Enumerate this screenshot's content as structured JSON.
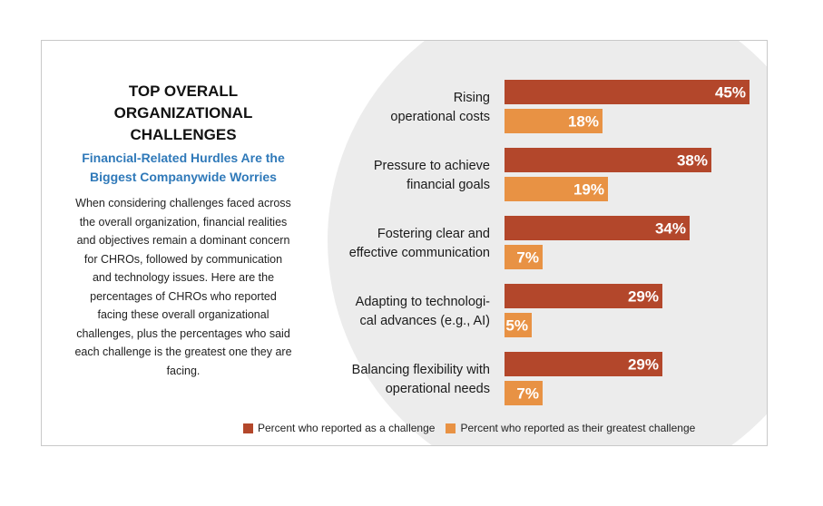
{
  "panel": {
    "title": "TOP OVERALL ORGANIZATIONAL CHALLENGES",
    "subtitle": "Financial-Related Hurdles Are the Biggest Companywide Worries",
    "body": "When considering challenges faced across the overall organization, financial realities and objectives remain a dominant concern for CHROs, followed by communication and technology issues. Here are the percentages of CHROs who reported facing these overall organizational challenges, plus the percentages who said each challenge is the greatest one they are facing."
  },
  "colors": {
    "challenge": "#b3472b",
    "greatest": "#e89244",
    "background_circle": "#ececec"
  },
  "chart_data": {
    "type": "bar",
    "orientation": "horizontal",
    "categories": [
      [
        "Rising",
        "operational costs"
      ],
      [
        "Pressure to achieve",
        "financial goals"
      ],
      [
        "Fostering clear and",
        "effective communication"
      ],
      [
        "Adapting to technologi-",
        "cal advances (e.g., AI)"
      ],
      [
        "Balancing flexibility with",
        "operational needs"
      ]
    ],
    "series": [
      {
        "name": "Percent who reported as a challenge",
        "values": [
          45,
          38,
          34,
          29,
          29
        ],
        "labels": [
          "45%",
          "38%",
          "34%",
          "29%",
          "29%"
        ]
      },
      {
        "name": "Percent who reported as their greatest challenge",
        "values": [
          18,
          19,
          7,
          5,
          7
        ],
        "labels": [
          "18%",
          "19%",
          "7%",
          "5%",
          "7%"
        ]
      }
    ],
    "xlim": [
      0,
      45
    ],
    "legend_position": "bottom"
  }
}
